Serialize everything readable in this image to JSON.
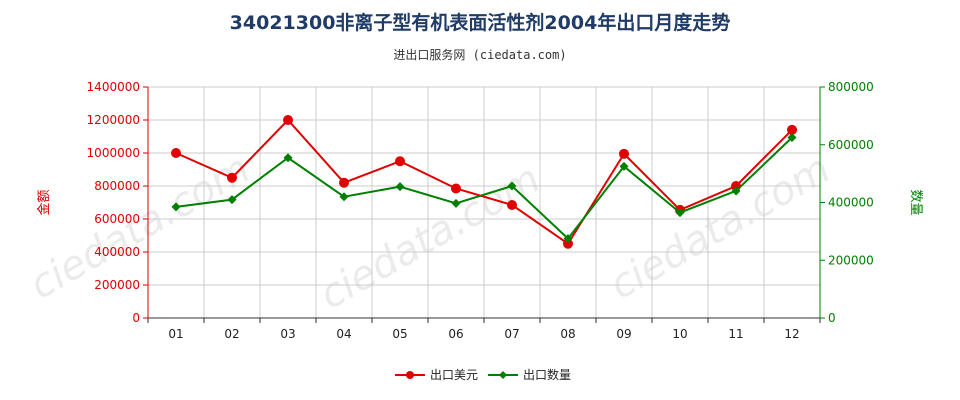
{
  "page": {
    "title": "34021300非离子型有机表面活性剂2004年出口月度走势",
    "subtitle": "进出口服务网 (ciedata.com)"
  },
  "colors": {
    "left_axis": "#e00000",
    "right_axis": "#008000",
    "grid": "#cccccc",
    "axis": "#333333"
  },
  "chart_data": {
    "type": "line",
    "title": "34021300非离子型有机表面活性剂2004年出口月度走势",
    "subtitle": "进出口服务网 (ciedata.com)",
    "categories": [
      "01",
      "02",
      "03",
      "04",
      "05",
      "06",
      "07",
      "08",
      "09",
      "10",
      "11",
      "12"
    ],
    "left_axis": {
      "label": "金额",
      "ylim": [
        0,
        1400000
      ],
      "ticks": [
        "0",
        "200000",
        "400000",
        "600000",
        "800000",
        "1000000",
        "1200000",
        "1400000"
      ]
    },
    "right_axis": {
      "label": "数量",
      "ylim": [
        0,
        800000
      ],
      "ticks": [
        "0",
        "200000",
        "400000",
        "600000",
        "800000"
      ]
    },
    "series": [
      {
        "name": "出口美元",
        "axis": "left",
        "color": "#e00000",
        "values": [
          1000000,
          850000,
          1200000,
          820000,
          950000,
          785000,
          685000,
          450000,
          995000,
          655000,
          800000,
          1140000
        ]
      },
      {
        "name": "出口数量",
        "axis": "right",
        "color": "#008000",
        "values": [
          385000,
          410000,
          555000,
          420000,
          455000,
          397000,
          457000,
          275000,
          525000,
          365000,
          440000,
          625000
        ]
      }
    ],
    "legend_position": "bottom",
    "grid": true
  }
}
